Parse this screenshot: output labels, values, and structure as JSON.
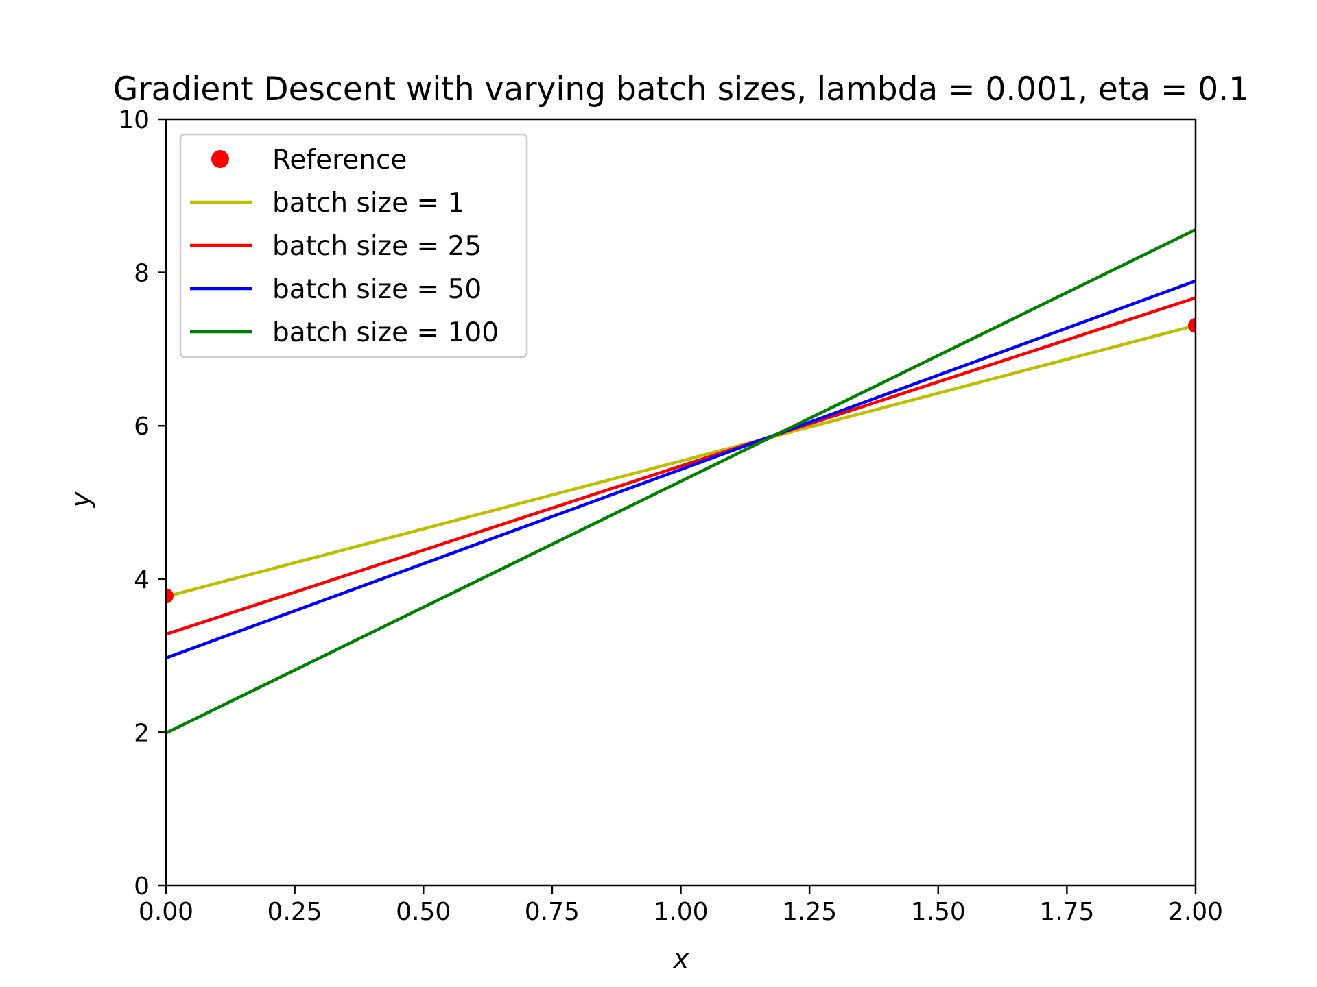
{
  "chart_data": {
    "type": "line",
    "title": "Gradient Descent with varying batch sizes, lambda = 0.001, eta = 0.1",
    "xlabel": "x",
    "ylabel": "y",
    "xlim": [
      0,
      2
    ],
    "ylim": [
      0,
      10
    ],
    "x_ticks": [
      0.0,
      0.25,
      0.5,
      0.75,
      1.0,
      1.25,
      1.5,
      1.75,
      2.0
    ],
    "x_tick_labels": [
      "0.00",
      "0.25",
      "0.50",
      "0.75",
      "1.00",
      "1.25",
      "1.50",
      "1.75",
      "2.00"
    ],
    "y_ticks": [
      0,
      2,
      4,
      6,
      8,
      10
    ],
    "y_tick_labels": [
      "0",
      "2",
      "4",
      "6",
      "8",
      "10"
    ],
    "grid": false,
    "legend_position": "top-left",
    "reference": {
      "name": "Reference",
      "color": "#ff0000",
      "x": [
        0,
        2
      ],
      "y": [
        3.78,
        7.31
      ]
    },
    "series": [
      {
        "name": "batch size = 1",
        "color": "#bfbf00",
        "x": [
          0,
          2
        ],
        "y": [
          3.77,
          7.31
        ]
      },
      {
        "name": "batch size = 25",
        "color": "#ff0000",
        "x": [
          0,
          2
        ],
        "y": [
          3.28,
          7.67
        ]
      },
      {
        "name": "batch size = 50",
        "color": "#0000ff",
        "x": [
          0,
          2
        ],
        "y": [
          2.97,
          7.89
        ]
      },
      {
        "name": "batch size = 100",
        "color": "#008000",
        "x": [
          0,
          2
        ],
        "y": [
          1.99,
          8.56
        ]
      }
    ]
  }
}
